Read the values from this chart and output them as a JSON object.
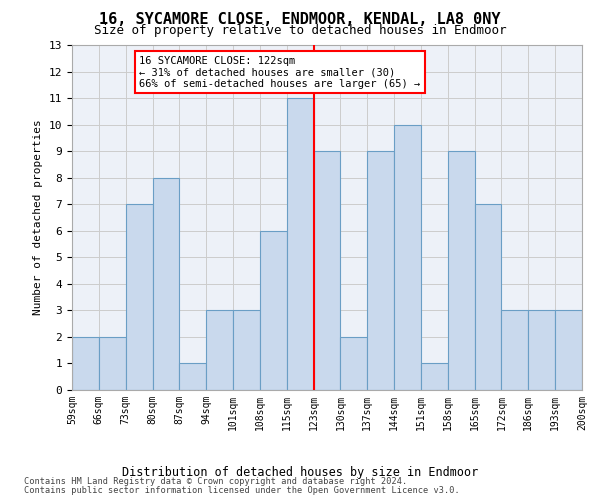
{
  "title": "16, SYCAMORE CLOSE, ENDMOOR, KENDAL, LA8 0NY",
  "subtitle": "Size of property relative to detached houses in Endmoor",
  "xlabel_dist": "Distribution of detached houses by size in Endmoor",
  "ylabel": "Number of detached properties",
  "footer_line1": "Contains HM Land Registry data © Crown copyright and database right 2024.",
  "footer_line2": "Contains public sector information licensed under the Open Government Licence v3.0.",
  "bin_labels": [
    "59sqm",
    "66sqm",
    "73sqm",
    "80sqm",
    "87sqm",
    "94sqm",
    "101sqm",
    "108sqm",
    "115sqm",
    "123sqm",
    "130sqm",
    "137sqm",
    "144sqm",
    "151sqm",
    "158sqm",
    "165sqm",
    "172sqm",
    "186sqm",
    "193sqm",
    "200sqm"
  ],
  "bar_values": [
    2,
    2,
    7,
    8,
    1,
    3,
    3,
    6,
    11,
    9,
    2,
    9,
    10,
    1,
    9,
    7,
    3,
    3,
    3
  ],
  "bar_color": "#c9d9ed",
  "bar_edge_color": "#6a9ec5",
  "reference_bin_index": 8.5,
  "reference_line_color": "red",
  "annotation_text": "16 SYCAMORE CLOSE: 122sqm\n← 31% of detached houses are smaller (30)\n66% of semi-detached houses are larger (65) →",
  "annotation_box_color": "white",
  "annotation_box_edge_color": "red",
  "ylim": [
    0,
    13
  ],
  "yticks": [
    0,
    1,
    2,
    3,
    4,
    5,
    6,
    7,
    8,
    9,
    10,
    11,
    12,
    13
  ],
  "grid_color": "#cccccc",
  "bg_color": "#edf1f8",
  "fig_width": 6.0,
  "fig_height": 5.0
}
